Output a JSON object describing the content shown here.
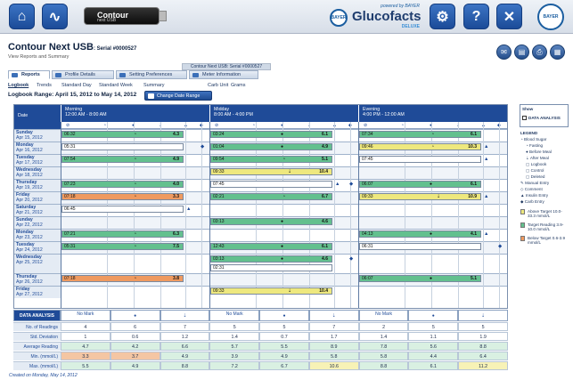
{
  "topbar": {
    "device_line1": "Contour",
    "device_line2": "next USB",
    "brand_powered": "powered by BAYER",
    "brand_name": "Glucofacts",
    "brand_edition": "DELUXE",
    "bayer": "BAYER"
  },
  "header": {
    "title": "Contour Next USB",
    "serial": ": Serial #0000527",
    "subtitle": "View Reports and Summary",
    "meter_label": "Contour Next USB: Serial #0000527"
  },
  "tabs": [
    "Reports",
    "Profile Details",
    "Setting Preferences",
    "Meter Information"
  ],
  "subtabs": [
    "Logbook",
    "Trends",
    "Standard Day",
    "Standard Week",
    "Summary",
    "Carb Unit",
    "Grams"
  ],
  "range": {
    "label": "Logbook Range: April 15, 2012 to May 14, 2012",
    "button": "Change Date Range"
  },
  "grid": {
    "date_header": "Date",
    "periods": [
      {
        "name": "Morning",
        "hours": "12:00 AM - 8:00 AM"
      },
      {
        "name": "Midday",
        "hours": "8:00 AM - 4:00 PM"
      },
      {
        "name": "Evening",
        "hours": "4:00 PM - 12:00 AM"
      }
    ],
    "days": [
      {
        "day": "Sunday",
        "date": "Apr 15, 2012"
      },
      {
        "day": "Monday",
        "date": "Apr 16, 2012"
      },
      {
        "day": "Tuesday",
        "date": "Apr 17, 2012"
      },
      {
        "day": "Wednesday",
        "date": "Apr 18, 2012"
      },
      {
        "day": "Thursday",
        "date": "Apr 19, 2012"
      },
      {
        "day": "Friday",
        "date": "Apr 20, 2012"
      },
      {
        "day": "Saturday",
        "date": "Apr 21, 2012"
      },
      {
        "day": "Sunday",
        "date": "Apr 22, 2012"
      },
      {
        "day": "Monday",
        "date": "Apr 23, 2012"
      },
      {
        "day": "Tuesday",
        "date": "Apr 24, 2012"
      },
      {
        "day": "Wednesday",
        "date": "Apr 25, 2012"
      },
      {
        "day": "Thursday",
        "date": "Apr 26, 2012"
      },
      {
        "day": "Friday",
        "date": "Apr 27, 2012"
      }
    ],
    "entries": [
      {
        "row": 0,
        "period": 0,
        "time": "06:32",
        "mark": "fasting",
        "value": "4.3",
        "color": "g"
      },
      {
        "row": 0,
        "period": 1,
        "time": "03:24",
        "mark": "before",
        "value": "6.1",
        "color": "g"
      },
      {
        "row": 0,
        "period": 2,
        "time": "07:34",
        "mark": "fasting",
        "value": "6.1",
        "color": "g"
      },
      {
        "row": 1,
        "period": 0,
        "time": "05:31",
        "mark": "",
        "value": "",
        "color": "w"
      },
      {
        "row": 1,
        "period": 1,
        "time": "01:04",
        "mark": "before",
        "value": "4.9",
        "color": "g"
      },
      {
        "row": 1,
        "period": 2,
        "time": "09:46",
        "mark": "fasting",
        "value": "10.3",
        "color": "y"
      },
      {
        "row": 2,
        "period": 0,
        "time": "07:54",
        "mark": "fasting",
        "value": "4.9",
        "color": "g"
      },
      {
        "row": 2,
        "period": 1,
        "time": "09:54",
        "mark": "fasting",
        "value": "5.1",
        "color": "g"
      },
      {
        "row": 2,
        "period": 2,
        "time": "07:45",
        "mark": "",
        "value": "",
        "color": "w"
      },
      {
        "row": 3,
        "period": 1,
        "time": "09:33",
        "mark": "after",
        "value": "10.4",
        "color": "y"
      },
      {
        "row": 4,
        "period": 0,
        "time": "07:23",
        "mark": "fasting",
        "value": "4.0",
        "color": "g"
      },
      {
        "row": 4,
        "period": 1,
        "time": "07:45",
        "mark": "",
        "value": "",
        "color": "w"
      },
      {
        "row": 4,
        "period": 2,
        "time": "06:07",
        "mark": "before",
        "value": "6.1",
        "color": "g"
      },
      {
        "row": 5,
        "period": 0,
        "time": "07:18",
        "mark": "fasting",
        "value": "3.3",
        "color": "o"
      },
      {
        "row": 5,
        "period": 1,
        "time": "02:21",
        "mark": "fasting",
        "value": "6.7",
        "color": "g"
      },
      {
        "row": 5,
        "period": 2,
        "time": "09:33",
        "mark": "after",
        "value": "10.9",
        "color": "y"
      },
      {
        "row": 6,
        "period": 0,
        "time": "06:45",
        "mark": "",
        "value": "",
        "color": "w"
      },
      {
        "row": 7,
        "period": 1,
        "time": "03:13",
        "mark": "before",
        "value": "4.6",
        "color": "g"
      },
      {
        "row": 8,
        "period": 0,
        "time": "07:21",
        "mark": "fasting",
        "value": "6.3",
        "color": "g"
      },
      {
        "row": 8,
        "period": 2,
        "time": "04:13",
        "mark": "before",
        "value": "4.1",
        "color": "g"
      },
      {
        "row": 9,
        "period": 0,
        "time": "05:31",
        "mark": "fasting",
        "value": "7.5",
        "color": "g"
      },
      {
        "row": 9,
        "period": 1,
        "time": "12:43",
        "mark": "before",
        "value": "6.1",
        "color": "g"
      },
      {
        "row": 9,
        "period": 2,
        "time": "06:31",
        "mark": "",
        "value": "",
        "color": "w"
      },
      {
        "row": 10,
        "period": 1,
        "time": "03:13",
        "mark": "before",
        "value": "4.6",
        "color": "g"
      },
      {
        "row": 10,
        "period": 1,
        "sub": 1,
        "time": "02:31",
        "mark": "",
        "value": "",
        "color": "w"
      },
      {
        "row": 11,
        "period": 0,
        "time": "07:18",
        "mark": "fasting",
        "value": "3.8",
        "color": "o"
      },
      {
        "row": 11,
        "period": 2,
        "time": "06:07",
        "mark": "before",
        "value": "5.1",
        "color": "g"
      },
      {
        "row": 12,
        "period": 1,
        "time": "09:33",
        "mark": "after",
        "value": "10.4",
        "color": "y"
      }
    ],
    "extra_symbols": [
      {
        "row": 1,
        "period": 0,
        "sym": "◆"
      },
      {
        "row": 1,
        "period": 2,
        "sym": "▲"
      },
      {
        "row": 2,
        "period": 2,
        "sym": "▲"
      },
      {
        "row": 4,
        "period": 1,
        "sym": "▲"
      },
      {
        "row": 4,
        "period": 1,
        "sym2": "◆"
      },
      {
        "row": 5,
        "period": 2,
        "sym": "▲"
      },
      {
        "row": 6,
        "period": 0,
        "sym": "▲"
      },
      {
        "row": 8,
        "period": 2,
        "sym": "▲"
      },
      {
        "row": 9,
        "period": 2,
        "sym": "◆"
      },
      {
        "row": 10,
        "period": 1,
        "sym": "◆"
      }
    ]
  },
  "legend": {
    "show": "Show",
    "data_analysis": "DATA ANALYSIS",
    "legend_title": "LEGEND",
    "items": [
      "Blood Sugar",
      "Fasting",
      "Before Meal",
      "After Meal",
      "Logbook",
      "Control",
      "Deleted",
      "Manual Entry",
      "Comment",
      "Insulin Entry",
      "Carb Entry"
    ],
    "above": "Above Target 10.0-33.3 mmol/L",
    "target": "Target Reading 3.9-10.0 mmol/L",
    "below": "Below Target 0.6-3.9 mmol/L",
    "colors": {
      "above": "#eee87e",
      "target": "#63c08e",
      "below": "#ef9a60"
    }
  },
  "analysis": {
    "title": "DATA ANALYSIS",
    "col_headers": [
      "No Mark",
      "●",
      "⇣",
      "No Mark",
      "●",
      "⇣",
      "No Mark",
      "●",
      "⇣"
    ],
    "rows": [
      {
        "label": "No. of Readings",
        "values": [
          "4",
          "6",
          "7",
          "5",
          "5",
          "7",
          "2",
          "5",
          "5"
        ]
      },
      {
        "label": "Std. Deviation",
        "values": [
          "1",
          "0.6",
          "1.2",
          "1.4",
          "0.7",
          "1.7",
          "1.4",
          "1.1",
          "1.9"
        ]
      },
      {
        "label": "Average Reading",
        "values": [
          "4.7",
          "4.2",
          "6.6",
          "5.7",
          "5.5",
          "8.9",
          "7.8",
          "5.6",
          "8.8"
        ]
      },
      {
        "label": "Min. (mmol/L)",
        "values": [
          "3.3",
          "3.7",
          "4.9",
          "3.9",
          "4.9",
          "5.8",
          "5.8",
          "4.4",
          "6.4"
        ]
      },
      {
        "label": "Max. (mmol/L)",
        "values": [
          "5.5",
          "4.9",
          "8.8",
          "7.2",
          "6.7",
          "10.6",
          "8.8",
          "6.1",
          "11.2"
        ]
      }
    ]
  },
  "footer": "Created on Monday, May 14, 2012"
}
